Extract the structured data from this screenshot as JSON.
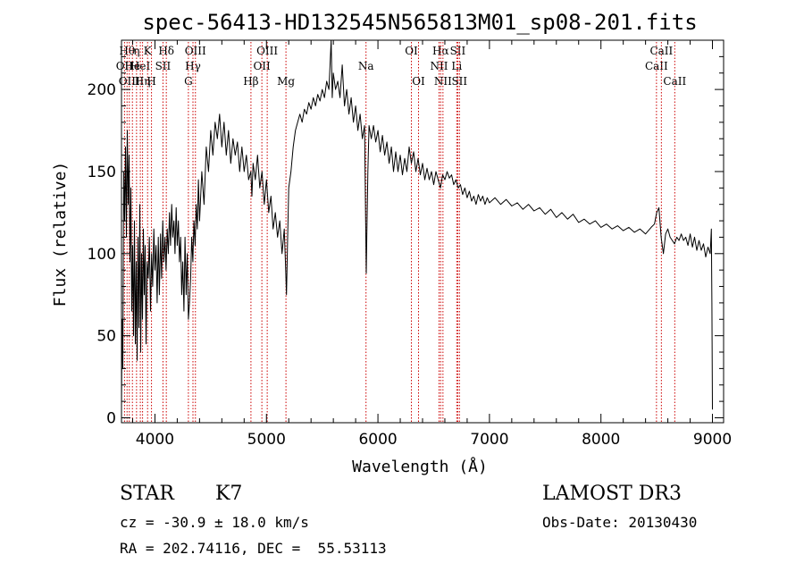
{
  "chart_data": {
    "type": "line",
    "title": "spec-56413-HD132545N565813M01_sp08-201.fits",
    "xlabel": "Wavelength (Å)",
    "ylabel": "Flux (relative)",
    "xlim": [
      3700,
      9100
    ],
    "ylim": [
      -3,
      230
    ],
    "xticks": [
      4000,
      5000,
      6000,
      7000,
      8000,
      9000
    ],
    "yticks": [
      0,
      50,
      100,
      150,
      200
    ],
    "grid": false,
    "series": [
      {
        "values": [
          [
            3700,
            5
          ],
          [
            3705,
            60
          ],
          [
            3712,
            30
          ],
          [
            3720,
            150
          ],
          [
            3728,
            120
          ],
          [
            3736,
            165
          ],
          [
            3744,
            110
          ],
          [
            3752,
            175
          ],
          [
            3760,
            130
          ],
          [
            3768,
            160
          ],
          [
            3776,
            95
          ],
          [
            3784,
            140
          ],
          [
            3792,
            65
          ],
          [
            3800,
            105
          ],
          [
            3808,
            50
          ],
          [
            3816,
            120
          ],
          [
            3824,
            45
          ],
          [
            3832,
            95
          ],
          [
            3840,
            35
          ],
          [
            3848,
            110
          ],
          [
            3856,
            55
          ],
          [
            3864,
            130
          ],
          [
            3872,
            40
          ],
          [
            3880,
            100
          ],
          [
            3888,
            60
          ],
          [
            3896,
            115
          ],
          [
            3904,
            75
          ],
          [
            3912,
            105
          ],
          [
            3920,
            45
          ],
          [
            3930,
            95
          ],
          [
            3940,
            85
          ],
          [
            3950,
            110
          ],
          [
            3960,
            65
          ],
          [
            3970,
            100
          ],
          [
            3980,
            80
          ],
          [
            3990,
            115
          ],
          [
            4000,
            90
          ],
          [
            4010,
            105
          ],
          [
            4020,
            70
          ],
          [
            4030,
            110
          ],
          [
            4040,
            75
          ],
          [
            4050,
            112
          ],
          [
            4060,
            85
          ],
          [
            4070,
            120
          ],
          [
            4080,
            95
          ],
          [
            4090,
            110
          ],
          [
            4100,
            90
          ],
          [
            4110,
            115
          ],
          [
            4120,
            100
          ],
          [
            4130,
            125
          ],
          [
            4140,
            105
          ],
          [
            4150,
            130
          ],
          [
            4160,
            110
          ],
          [
            4170,
            120
          ],
          [
            4180,
            100
          ],
          [
            4190,
            128
          ],
          [
            4200,
            105
          ],
          [
            4210,
            120
          ],
          [
            4220,
            95
          ],
          [
            4230,
            110
          ],
          [
            4240,
            75
          ],
          [
            4250,
            95
          ],
          [
            4260,
            65
          ],
          [
            4270,
            110
          ],
          [
            4280,
            75
          ],
          [
            4290,
            100
          ],
          [
            4300,
            60
          ],
          [
            4310,
            70
          ],
          [
            4320,
            85
          ],
          [
            4330,
            110
          ],
          [
            4340,
            95
          ],
          [
            4350,
            120
          ],
          [
            4360,
            105
          ],
          [
            4370,
            130
          ],
          [
            4380,
            115
          ],
          [
            4390,
            145
          ],
          [
            4400,
            120
          ],
          [
            4420,
            150
          ],
          [
            4440,
            130
          ],
          [
            4460,
            165
          ],
          [
            4480,
            150
          ],
          [
            4500,
            175
          ],
          [
            4520,
            160
          ],
          [
            4540,
            180
          ],
          [
            4560,
            170
          ],
          [
            4580,
            185
          ],
          [
            4600,
            165
          ],
          [
            4620,
            180
          ],
          [
            4640,
            160
          ],
          [
            4660,
            175
          ],
          [
            4680,
            155
          ],
          [
            4700,
            170
          ],
          [
            4720,
            160
          ],
          [
            4740,
            168
          ],
          [
            4760,
            150
          ],
          [
            4780,
            165
          ],
          [
            4800,
            150
          ],
          [
            4820,
            160
          ],
          [
            4840,
            145
          ],
          [
            4860,
            150
          ],
          [
            4870,
            135
          ],
          [
            4880,
            155
          ],
          [
            4900,
            145
          ],
          [
            4920,
            160
          ],
          [
            4940,
            140
          ],
          [
            4960,
            150
          ],
          [
            4980,
            130
          ],
          [
            5000,
            145
          ],
          [
            5020,
            125
          ],
          [
            5040,
            135
          ],
          [
            5060,
            115
          ],
          [
            5080,
            125
          ],
          [
            5100,
            110
          ],
          [
            5120,
            120
          ],
          [
            5140,
            100
          ],
          [
            5160,
            115
          ],
          [
            5170,
            95
          ],
          [
            5180,
            75
          ],
          [
            5190,
            110
          ],
          [
            5200,
            140
          ],
          [
            5220,
            150
          ],
          [
            5240,
            165
          ],
          [
            5260,
            175
          ],
          [
            5280,
            180
          ],
          [
            5300,
            185
          ],
          [
            5320,
            180
          ],
          [
            5340,
            188
          ],
          [
            5360,
            185
          ],
          [
            5380,
            192
          ],
          [
            5400,
            188
          ],
          [
            5420,
            195
          ],
          [
            5440,
            190
          ],
          [
            5460,
            197
          ],
          [
            5480,
            193
          ],
          [
            5500,
            200
          ],
          [
            5520,
            195
          ],
          [
            5540,
            205
          ],
          [
            5560,
            200
          ],
          [
            5580,
            230
          ],
          [
            5590,
            195
          ],
          [
            5600,
            210
          ],
          [
            5620,
            200
          ],
          [
            5640,
            205
          ],
          [
            5660,
            195
          ],
          [
            5680,
            215
          ],
          [
            5700,
            190
          ],
          [
            5720,
            200
          ],
          [
            5740,
            185
          ],
          [
            5760,
            195
          ],
          [
            5780,
            180
          ],
          [
            5800,
            190
          ],
          [
            5820,
            175
          ],
          [
            5840,
            185
          ],
          [
            5860,
            170
          ],
          [
            5880,
            178
          ],
          [
            5890,
            120
          ],
          [
            5895,
            88
          ],
          [
            5900,
            110
          ],
          [
            5910,
            150
          ],
          [
            5920,
            178
          ],
          [
            5940,
            170
          ],
          [
            5960,
            178
          ],
          [
            5980,
            168
          ],
          [
            6000,
            175
          ],
          [
            6020,
            162
          ],
          [
            6040,
            172
          ],
          [
            6060,
            160
          ],
          [
            6080,
            168
          ],
          [
            6100,
            155
          ],
          [
            6120,
            165
          ],
          [
            6140,
            150
          ],
          [
            6160,
            162
          ],
          [
            6180,
            150
          ],
          [
            6200,
            160
          ],
          [
            6220,
            148
          ],
          [
            6240,
            158
          ],
          [
            6260,
            150
          ],
          [
            6280,
            165
          ],
          [
            6300,
            155
          ],
          [
            6320,
            162
          ],
          [
            6340,
            150
          ],
          [
            6360,
            158
          ],
          [
            6380,
            148
          ],
          [
            6400,
            155
          ],
          [
            6420,
            145
          ],
          [
            6440,
            152
          ],
          [
            6460,
            145
          ],
          [
            6480,
            150
          ],
          [
            6500,
            142
          ],
          [
            6520,
            150
          ],
          [
            6540,
            145
          ],
          [
            6560,
            140
          ],
          [
            6580,
            148
          ],
          [
            6600,
            145
          ],
          [
            6620,
            150
          ],
          [
            6640,
            146
          ],
          [
            6660,
            148
          ],
          [
            6680,
            142
          ],
          [
            6700,
            145
          ],
          [
            6720,
            140
          ],
          [
            6740,
            142
          ],
          [
            6760,
            136
          ],
          [
            6780,
            140
          ],
          [
            6800,
            134
          ],
          [
            6820,
            138
          ],
          [
            6840,
            132
          ],
          [
            6860,
            135
          ],
          [
            6880,
            130
          ],
          [
            6900,
            136
          ],
          [
            6920,
            132
          ],
          [
            6940,
            135
          ],
          [
            6960,
            130
          ],
          [
            6980,
            134
          ],
          [
            7000,
            131
          ],
          [
            7050,
            134
          ],
          [
            7100,
            130
          ],
          [
            7150,
            133
          ],
          [
            7200,
            129
          ],
          [
            7250,
            131
          ],
          [
            7300,
            127
          ],
          [
            7350,
            130
          ],
          [
            7400,
            126
          ],
          [
            7450,
            128
          ],
          [
            7500,
            124
          ],
          [
            7550,
            127
          ],
          [
            7600,
            122
          ],
          [
            7650,
            125
          ],
          [
            7700,
            121
          ],
          [
            7750,
            124
          ],
          [
            7800,
            119
          ],
          [
            7850,
            121
          ],
          [
            7900,
            118
          ],
          [
            7950,
            120
          ],
          [
            8000,
            116
          ],
          [
            8050,
            118
          ],
          [
            8100,
            115
          ],
          [
            8150,
            117
          ],
          [
            8200,
            114
          ],
          [
            8250,
            116
          ],
          [
            8300,
            113
          ],
          [
            8350,
            115
          ],
          [
            8400,
            112
          ],
          [
            8450,
            116
          ],
          [
            8480,
            118
          ],
          [
            8500,
            125
          ],
          [
            8520,
            128
          ],
          [
            8540,
            110
          ],
          [
            8560,
            100
          ],
          [
            8580,
            112
          ],
          [
            8600,
            115
          ],
          [
            8620,
            110
          ],
          [
            8640,
            108
          ],
          [
            8660,
            106
          ],
          [
            8680,
            110
          ],
          [
            8700,
            108
          ],
          [
            8720,
            112
          ],
          [
            8740,
            108
          ],
          [
            8760,
            110
          ],
          [
            8780,
            105
          ],
          [
            8800,
            112
          ],
          [
            8820,
            104
          ],
          [
            8840,
            110
          ],
          [
            8860,
            102
          ],
          [
            8880,
            108
          ],
          [
            8900,
            102
          ],
          [
            8920,
            106
          ],
          [
            8940,
            98
          ],
          [
            8960,
            104
          ],
          [
            8980,
            100
          ],
          [
            8990,
            115
          ],
          [
            8995,
            70
          ],
          [
            9000,
            5
          ]
        ]
      }
    ],
    "line_markers": [
      {
        "x": 3727,
        "label": "OII",
        "row": 1
      },
      {
        "x": 3750,
        "label": "Hθ",
        "row": 0
      },
      {
        "x": 3770,
        "label": "OIII",
        "row": 2
      },
      {
        "x": 3798,
        "label": "He",
        "row": 1
      },
      {
        "x": 3835,
        "label": "η",
        "row": 0
      },
      {
        "x": 3869,
        "label": "HeI",
        "row": 1
      },
      {
        "x": 3889,
        "label": "Hη",
        "row": 2
      },
      {
        "x": 3934,
        "label": "K",
        "row": 0
      },
      {
        "x": 3969,
        "label": "H",
        "row": 2
      },
      {
        "x": 4072,
        "label": "SII",
        "row": 1
      },
      {
        "x": 4102,
        "label": "Hδ",
        "row": 0
      },
      {
        "x": 4300,
        "label": "G",
        "row": 2
      },
      {
        "x": 4341,
        "label": "Hγ",
        "row": 1
      },
      {
        "x": 4363,
        "label": "OIII",
        "row": 0
      },
      {
        "x": 4861,
        "label": "Hβ",
        "row": 2
      },
      {
        "x": 4959,
        "label": "OII",
        "row": 1
      },
      {
        "x": 5007,
        "label": "OIII",
        "row": 0
      },
      {
        "x": 5175,
        "label": "Mg",
        "row": 2
      },
      {
        "x": 5893,
        "label": "Na",
        "row": 1
      },
      {
        "x": 6300,
        "label": "OI",
        "row": 0
      },
      {
        "x": 6364,
        "label": "OI",
        "row": 2
      },
      {
        "x": 6548,
        "label": "NII",
        "row": 1
      },
      {
        "x": 6563,
        "label": "Hα",
        "row": 0
      },
      {
        "x": 6583,
        "label": "NII",
        "row": 2
      },
      {
        "x": 6707,
        "label": "Li",
        "row": 1
      },
      {
        "x": 6716,
        "label": "SII",
        "row": 0
      },
      {
        "x": 6731,
        "label": "SII",
        "row": 2
      },
      {
        "x": 8498,
        "label": "CaII",
        "row": 1
      },
      {
        "x": 8542,
        "label": "CaII",
        "row": 0
      },
      {
        "x": 8662,
        "label": "CaII",
        "row": 2
      }
    ],
    "colors": {
      "spectrum": "#000000",
      "markers": "#cc0000",
      "axes": "#000000"
    }
  },
  "info": {
    "class": "STAR",
    "subclass": "K7",
    "survey": "LAMOST DR3",
    "cz": "cz = -30.9 ± 18.0 km/s",
    "obs_date": "Obs-Date: 20130430",
    "coords": "RA = 202.74116, DEC =  55.53113"
  }
}
